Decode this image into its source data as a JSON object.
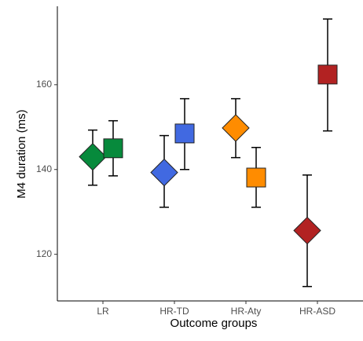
{
  "chart_data": {
    "type": "pointrange",
    "x_label": "Outcome groups",
    "y_label": "M4 duration (ms)",
    "categories": [
      "LR",
      "HR-TD",
      "HR-Aty",
      "HR-ASD"
    ],
    "colors": [
      "#078a3c",
      "#4169e1",
      "#ff8c00",
      "#b22222"
    ],
    "series": [
      {
        "marker": "diamond",
        "values": [
          143,
          139.3,
          149.8,
          125.6
        ],
        "lower": [
          136.3,
          131.1,
          142.8,
          112.4
        ],
        "upper": [
          149.3,
          148,
          156.7,
          138.7
        ]
      },
      {
        "marker": "square",
        "values": [
          145,
          148.5,
          138.1,
          162.4
        ],
        "lower": [
          138.5,
          140,
          131.1,
          149.1
        ],
        "upper": [
          151.5,
          156.7,
          145.2,
          175.5
        ]
      }
    ],
    "ylim": [
      109,
      178.5
    ],
    "yticks": [
      120,
      140,
      160
    ]
  }
}
